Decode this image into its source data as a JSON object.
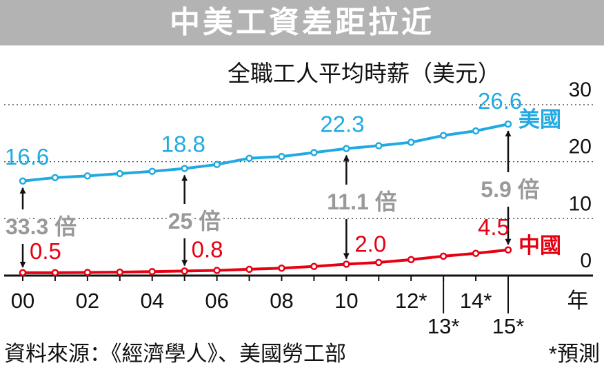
{
  "title": "中美工資差距拉近",
  "source": "資料來源：《經濟學人》、美國勞工部",
  "note": "*預測",
  "colors": {
    "us": "#21a9e1",
    "china": "#e60012",
    "ratio": "#999999",
    "title_bg": "#b3b3b3"
  },
  "chart_data": {
    "type": "line",
    "ylabel": "全職工人平均時薪（美元）",
    "xlabel": "年",
    "ylim": [
      0,
      30
    ],
    "yticks": [
      "0",
      "10",
      "20",
      "30"
    ],
    "xlim": [
      2000,
      2015
    ],
    "xticks": [
      {
        "x": 2000,
        "label": "00",
        "row": 0
      },
      {
        "x": 2002,
        "label": "02",
        "row": 0
      },
      {
        "x": 2004,
        "label": "04",
        "row": 0
      },
      {
        "x": 2006,
        "label": "06",
        "row": 0
      },
      {
        "x": 2008,
        "label": "08",
        "row": 0
      },
      {
        "x": 2010,
        "label": "10",
        "row": 0
      },
      {
        "x": 2012,
        "label": "12*",
        "row": 0
      },
      {
        "x": 2013,
        "label": "13*",
        "row": 1
      },
      {
        "x": 2014,
        "label": "14*",
        "row": 0
      },
      {
        "x": 2015,
        "label": "15*",
        "row": 1
      }
    ],
    "grid": "dotted-horizontal",
    "x": [
      2000,
      2001,
      2002,
      2003,
      2004,
      2005,
      2006,
      2007,
      2008,
      2009,
      2010,
      2011,
      2012,
      2013,
      2014,
      2015
    ],
    "series": [
      {
        "name": "美國",
        "key": "us",
        "values": [
          16.6,
          17.2,
          17.5,
          17.9,
          18.3,
          18.8,
          19.5,
          20.6,
          20.9,
          21.6,
          22.3,
          22.8,
          23.4,
          24.6,
          25.4,
          26.6
        ]
      },
      {
        "name": "中國",
        "key": "china",
        "values": [
          0.5,
          0.5,
          0.55,
          0.6,
          0.7,
          0.8,
          0.9,
          1.1,
          1.3,
          1.6,
          2.0,
          2.3,
          2.8,
          3.4,
          3.9,
          4.5
        ]
      }
    ],
    "value_labels": [
      {
        "series": "us",
        "x": 2000,
        "text": "16.6"
      },
      {
        "series": "us",
        "x": 2005,
        "text": "18.8"
      },
      {
        "series": "us",
        "x": 2010,
        "text": "22.3"
      },
      {
        "series": "us",
        "x": 2015,
        "text": "26.6"
      },
      {
        "series": "china",
        "x": 2000,
        "text": "0.5"
      },
      {
        "series": "china",
        "x": 2005,
        "text": "0.8"
      },
      {
        "series": "china",
        "x": 2010,
        "text": "2.0"
      },
      {
        "series": "china",
        "x": 2015,
        "text": "4.5"
      }
    ],
    "ratios": [
      {
        "x": 2000,
        "text": "33.3 倍"
      },
      {
        "x": 2005,
        "text": "25 倍"
      },
      {
        "x": 2010,
        "text": "11.1 倍"
      },
      {
        "x": 2015,
        "text": "5.9 倍"
      }
    ]
  }
}
